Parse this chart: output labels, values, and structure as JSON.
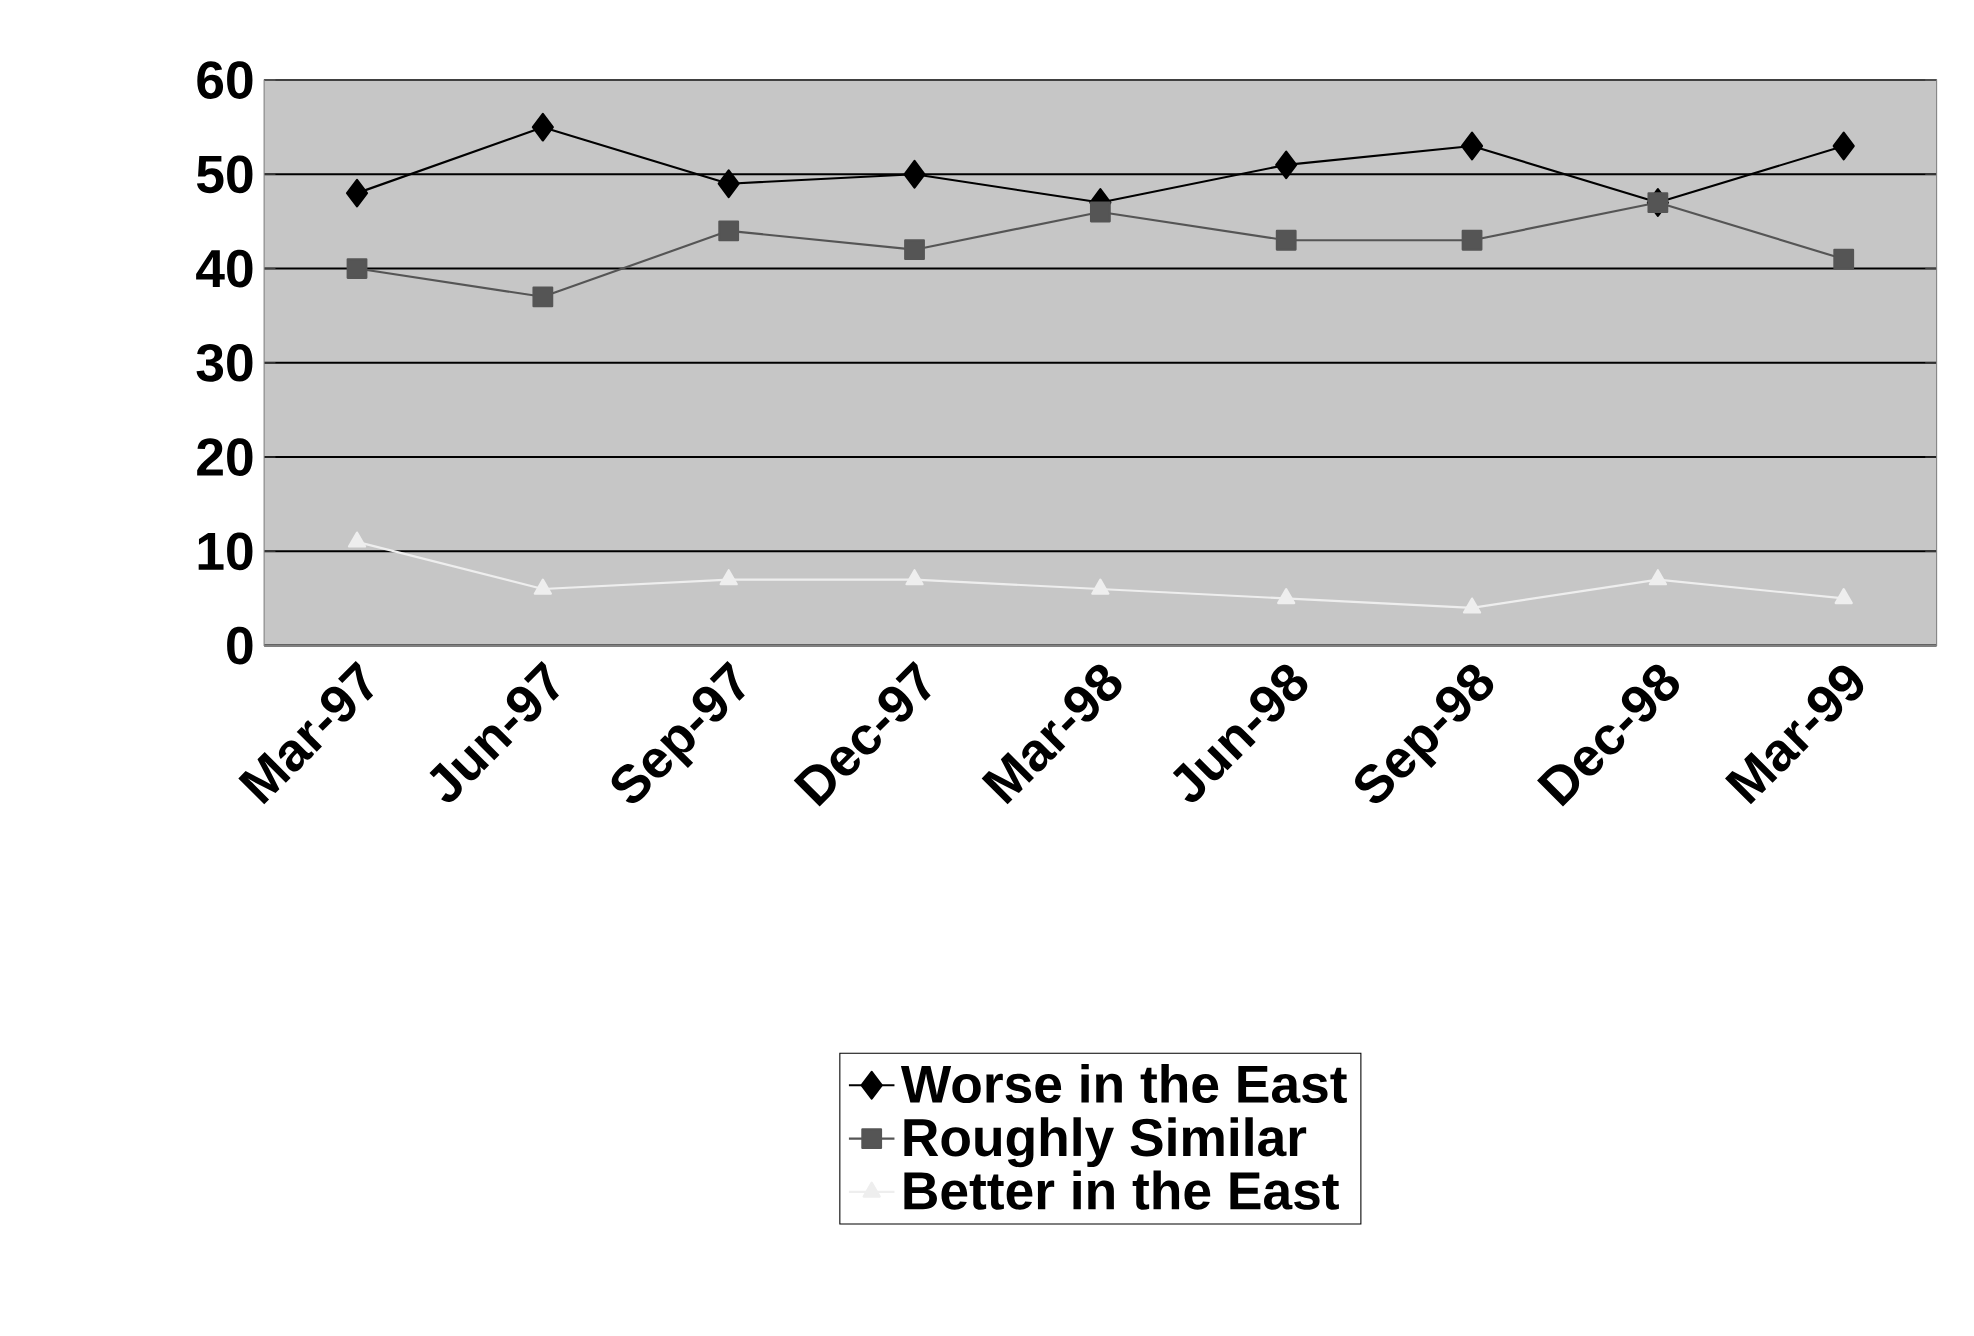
{
  "chart_data": {
    "type": "line",
    "categories": [
      "Mar-97",
      "Jun-97",
      "Sep-97",
      "Dec-97",
      "Mar-98",
      "Jun-98",
      "Sep-98",
      "Dec-98",
      "Mar-99"
    ],
    "series": [
      {
        "name": "Worse in the East",
        "color": "#000000",
        "marker": "diamond",
        "values": [
          48,
          55,
          49,
          50,
          47,
          51,
          53,
          47,
          53
        ]
      },
      {
        "name": "Roughly Similar",
        "color": "#555555",
        "marker": "square",
        "values": [
          40,
          37,
          44,
          42,
          46,
          43,
          43,
          47,
          41
        ]
      },
      {
        "name": "Better in the East",
        "color": "#eeeeee",
        "marker": "triangle",
        "values": [
          11,
          6,
          7,
          7,
          6,
          5,
          4,
          7,
          5
        ]
      }
    ],
    "ylim": [
      0,
      60
    ],
    "yticks": [
      0,
      10,
      20,
      30,
      40,
      50,
      60
    ],
    "grid": "y",
    "legend": "bottom"
  }
}
